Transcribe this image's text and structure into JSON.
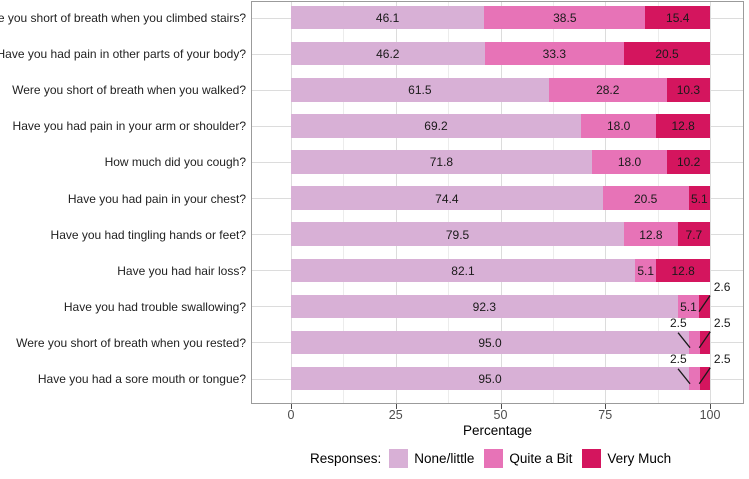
{
  "chart_data": {
    "type": "bar",
    "orientation": "horizontal",
    "stacked": true,
    "title": "",
    "xlabel": "Percentage",
    "ylabel": "",
    "xlim": [
      0,
      100
    ],
    "xticks": [
      0,
      25,
      50,
      75,
      100
    ],
    "xticks_minor": [
      12.5,
      37.5,
      62.5,
      87.5
    ],
    "grid": true,
    "legend_position": "bottom",
    "callout_threshold": 3.5,
    "series_names": [
      "None/little",
      "Quite a Bit",
      "Very Much"
    ],
    "series_colors": [
      "#D8B0D6",
      "#E773B7",
      "#D4155E"
    ],
    "categories": [
      "Were you short of breath when you climbed stairs?",
      "Have you had pain in other parts of your body?",
      "Were you short of breath when you walked?",
      "Have you had pain in your arm or shoulder?",
      "How much did you cough?",
      "Have you had pain in your chest?",
      "Have you had tingling hands or feet?",
      "Have you had hair loss?",
      "Have you had trouble swallowing?",
      "Were you short of breath when you rested?",
      "Have you had a sore mouth or tongue?"
    ],
    "rows": [
      {
        "question": "Were you short of breath when you climbed stairs?",
        "values": [
          46.1,
          38.5,
          15.4
        ],
        "labels": [
          "46.1",
          "38.5",
          "15.4"
        ]
      },
      {
        "question": "Have you had pain in other parts of your body?",
        "values": [
          46.2,
          33.3,
          20.5
        ],
        "labels": [
          "46.2",
          "33.3",
          "20.5"
        ]
      },
      {
        "question": "Were you short of breath when you walked?",
        "values": [
          61.5,
          28.2,
          10.3
        ],
        "labels": [
          "61.5",
          "28.2",
          "10.3"
        ]
      },
      {
        "question": "Have you had pain in your arm or shoulder?",
        "values": [
          69.2,
          18.0,
          12.8
        ],
        "labels": [
          "69.2",
          "18.0",
          "12.8"
        ]
      },
      {
        "question": "How much did you cough?",
        "values": [
          71.8,
          18.0,
          10.2
        ],
        "labels": [
          "71.8",
          "18.0",
          "10.2"
        ]
      },
      {
        "question": "Have you had pain in your chest?",
        "values": [
          74.4,
          20.5,
          5.1
        ],
        "labels": [
          "74.4",
          "20.5",
          "5.1"
        ]
      },
      {
        "question": "Have you had tingling hands or feet?",
        "values": [
          79.5,
          12.8,
          7.7
        ],
        "labels": [
          "79.5",
          "12.8",
          "7.7"
        ]
      },
      {
        "question": "Have you had hair loss?",
        "values": [
          82.1,
          5.1,
          12.8
        ],
        "labels": [
          "82.1",
          "5.1",
          "12.8"
        ]
      },
      {
        "question": "Have you had trouble swallowing?",
        "values": [
          92.3,
          5.1,
          2.6
        ],
        "labels": [
          "92.3",
          "5.1",
          "2.6"
        ]
      },
      {
        "question": "Were you short of breath when you rested?",
        "values": [
          95.0,
          2.5,
          2.5
        ],
        "labels": [
          "95.0",
          "2.5",
          "2.5"
        ]
      },
      {
        "question": "Have you had a sore mouth or tongue?",
        "values": [
          95.0,
          2.5,
          2.5
        ],
        "labels": [
          "95.0",
          "2.5",
          "2.5"
        ]
      }
    ]
  },
  "legend": {
    "title": "Responses:",
    "items": [
      {
        "label": "None/little",
        "color": "#D8B0D6"
      },
      {
        "label": "Quite a Bit",
        "color": "#E773B7"
      },
      {
        "label": "Very Much",
        "color": "#D4155E"
      }
    ]
  },
  "colors": {
    "panel_border": "#9b9b9b",
    "grid_major": "#dcdcdc",
    "grid_minor": "#ececec",
    "tick": "#4d4d4d",
    "bar_label_text": "#1a1a1a",
    "axis_text": "#4d4d4d"
  }
}
